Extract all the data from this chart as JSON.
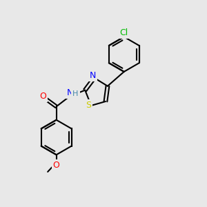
{
  "bg_color": "#e8e8e8",
  "bond_color": "#000000",
  "bond_width": 1.5,
  "atom_colors": {
    "S": "#cccc00",
    "N": "#0000ff",
    "O": "#ff0000",
    "Cl": "#00bb00",
    "C": "#000000",
    "H": "#4488aa"
  },
  "font_size": 9,
  "fig_size": [
    3.0,
    3.0
  ],
  "dpi": 100,
  "xlim": [
    0,
    10
  ],
  "ylim": [
    0,
    10
  ]
}
